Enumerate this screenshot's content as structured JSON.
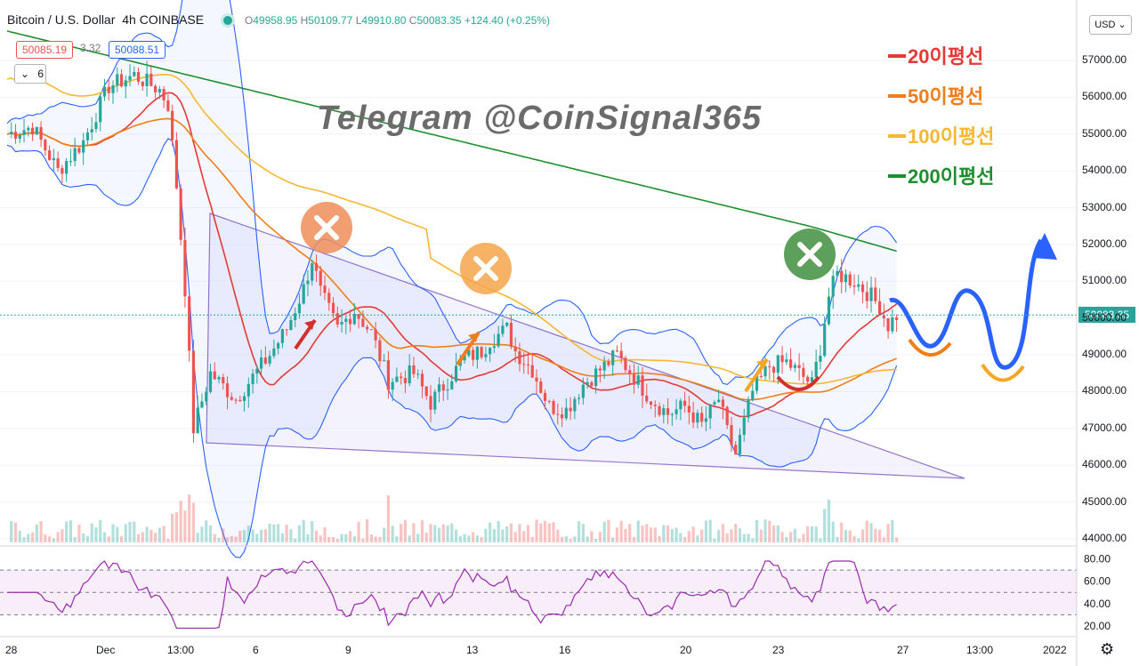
{
  "header": {
    "symbol": "Bitcoin / U.S. Dollar",
    "interval": "4h",
    "exchange": "COINBASE",
    "ohlc": {
      "o_label": "O",
      "o": "49958.95",
      "h_label": "H",
      "h": "50109.77",
      "l_label": "L",
      "l": "49910.80",
      "c_label": "C",
      "c": "50083.35",
      "change": "+124.40 (+0.25%)"
    }
  },
  "badges": {
    "ma_value": "50085.19",
    "vol_value": "3.32",
    "bb_value": "50088.51",
    "indicator_count": "6"
  },
  "currency": "USD",
  "current_price": "50083.35",
  "watermark": "Telegram @CoinSignal365",
  "legend": [
    {
      "label": "20이평선",
      "color": "#e53935"
    },
    {
      "label": "50이평선",
      "color": "#ef7d1a"
    },
    {
      "label": "100이평선",
      "color": "#f7b731"
    },
    {
      "label": "200이평선",
      "color": "#1e8f2e"
    }
  ],
  "colors": {
    "up": "#26a69a",
    "down": "#ef5350",
    "bollinger": "#2962ff",
    "rsi": "#9c27b0",
    "triangle": "#9575cd",
    "arrow_path": "#2962ff"
  },
  "chart_data": {
    "type": "candlestick",
    "y_axis": {
      "ticks": [
        44000,
        45000,
        46000,
        47000,
        48000,
        49000,
        50000,
        51000,
        52000,
        53000,
        54000,
        55000,
        56000,
        57000
      ],
      "ylim": [
        44000,
        57500
      ]
    },
    "x_axis": {
      "ticks": [
        "28",
        "Dec",
        "13:00",
        "6",
        "9",
        "13",
        "16",
        "20",
        "23",
        "27",
        "13:00",
        "2022"
      ]
    },
    "rsi": {
      "ticks": [
        20.0,
        40.0,
        60.0,
        80.0
      ],
      "bands": [
        30,
        70
      ],
      "mid": 50,
      "ylim": [
        12,
        82
      ]
    },
    "markers": [
      {
        "type": "cross",
        "color": "#ef8d5a"
      },
      {
        "type": "cross",
        "color": "#f5a54a"
      },
      {
        "type": "cross",
        "color": "#3f8f3f"
      }
    ],
    "close_path": [
      [
        0,
        55000
      ],
      [
        6,
        55200
      ],
      [
        12,
        54000
      ],
      [
        18,
        54800
      ],
      [
        24,
        56300
      ],
      [
        30,
        56600
      ],
      [
        36,
        56200
      ],
      [
        38,
        55800
      ],
      [
        40,
        53600
      ],
      [
        42,
        50800
      ],
      [
        44,
        47000
      ],
      [
        48,
        48500
      ],
      [
        54,
        47800
      ],
      [
        58,
        48400
      ],
      [
        62,
        49000
      ],
      [
        66,
        49700
      ],
      [
        70,
        50800
      ],
      [
        72,
        51600
      ],
      [
        74,
        50700
      ],
      [
        78,
        49700
      ],
      [
        82,
        50200
      ],
      [
        86,
        49600
      ],
      [
        90,
        48300
      ],
      [
        96,
        48500
      ],
      [
        100,
        47700
      ],
      [
        104,
        48300
      ],
      [
        108,
        48900
      ],
      [
        112,
        49100
      ],
      [
        114,
        49400
      ],
      [
        118,
        49700
      ],
      [
        120,
        49100
      ],
      [
        124,
        48600
      ],
      [
        128,
        47600
      ],
      [
        132,
        47500
      ],
      [
        136,
        48200
      ],
      [
        140,
        48600
      ],
      [
        144,
        49000
      ],
      [
        148,
        48400
      ],
      [
        152,
        47800
      ],
      [
        156,
        47400
      ],
      [
        160,
        47600
      ],
      [
        164,
        47100
      ],
      [
        168,
        47800
      ],
      [
        170,
        46900
      ],
      [
        172,
        46300
      ],
      [
        176,
        48000
      ],
      [
        180,
        48700
      ],
      [
        184,
        48800
      ],
      [
        188,
        48400
      ],
      [
        190,
        48200
      ],
      [
        192,
        49200
      ],
      [
        194,
        50600
      ],
      [
        196,
        51200
      ],
      [
        200,
        51000
      ],
      [
        204,
        50600
      ],
      [
        206,
        50300
      ],
      [
        208,
        49800
      ],
      [
        210,
        50080
      ]
    ]
  }
}
